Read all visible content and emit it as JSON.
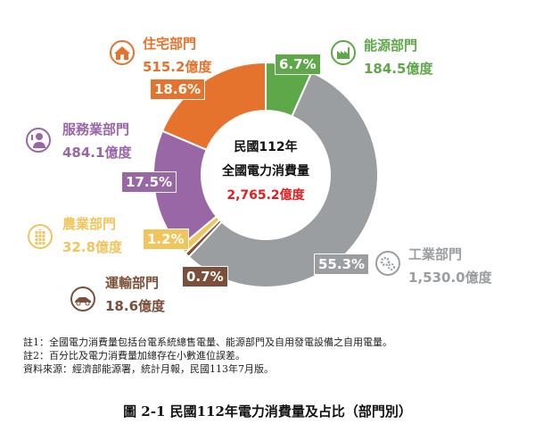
{
  "chart_data": {
    "type": "pie",
    "donut": true,
    "center_text": {
      "line1": "民國112年",
      "line2": "全國電力消費量",
      "total": "2,765.2億度"
    },
    "slices": [
      {
        "name": "能源部門",
        "value": 184.5,
        "value_label": "184.5億度",
        "percent": 6.7,
        "percent_label": "6.7%",
        "color": "#5fa84a",
        "icon": "factory-icon"
      },
      {
        "name": "工業部門",
        "value": 1530.0,
        "value_label": "1,530.0億度",
        "percent": 55.3,
        "percent_label": "55.3%",
        "color": "#9b9ea1",
        "icon": "gears-icon"
      },
      {
        "name": "運輸部門",
        "value": 18.6,
        "value_label": "18.6億度",
        "percent": 0.7,
        "percent_label": "0.7%",
        "color": "#7b4f3a",
        "icon": "car-icon"
      },
      {
        "name": "農業部門",
        "value": 32.8,
        "value_label": "32.8億度",
        "percent": 1.2,
        "percent_label": "1.2%",
        "color": "#f1c55c",
        "icon": "wheat-icon"
      },
      {
        "name": "服務業部門",
        "value": 484.1,
        "value_label": "484.1億度",
        "percent": 17.5,
        "percent_label": "17.5%",
        "color": "#9966a6",
        "icon": "service-person-icon"
      },
      {
        "name": "住宅部門",
        "value": 515.2,
        "value_label": "515.2億度",
        "percent": 18.6,
        "percent_label": "18.6%",
        "color": "#e5732e",
        "icon": "house-icon"
      }
    ],
    "title": "圖 2-1  民國112年電力消費量及占比（部門別）",
    "notes": [
      "註1：全國電力消費量包括台電系統總售電量、能源部門及自用發電設備之自用電量。",
      "註2：百分比及電力消費量加總存在小數進位誤差。",
      "資料來源：經濟部能源署，統計月報，民國113年7月版。"
    ],
    "total_color": "#e02020"
  }
}
